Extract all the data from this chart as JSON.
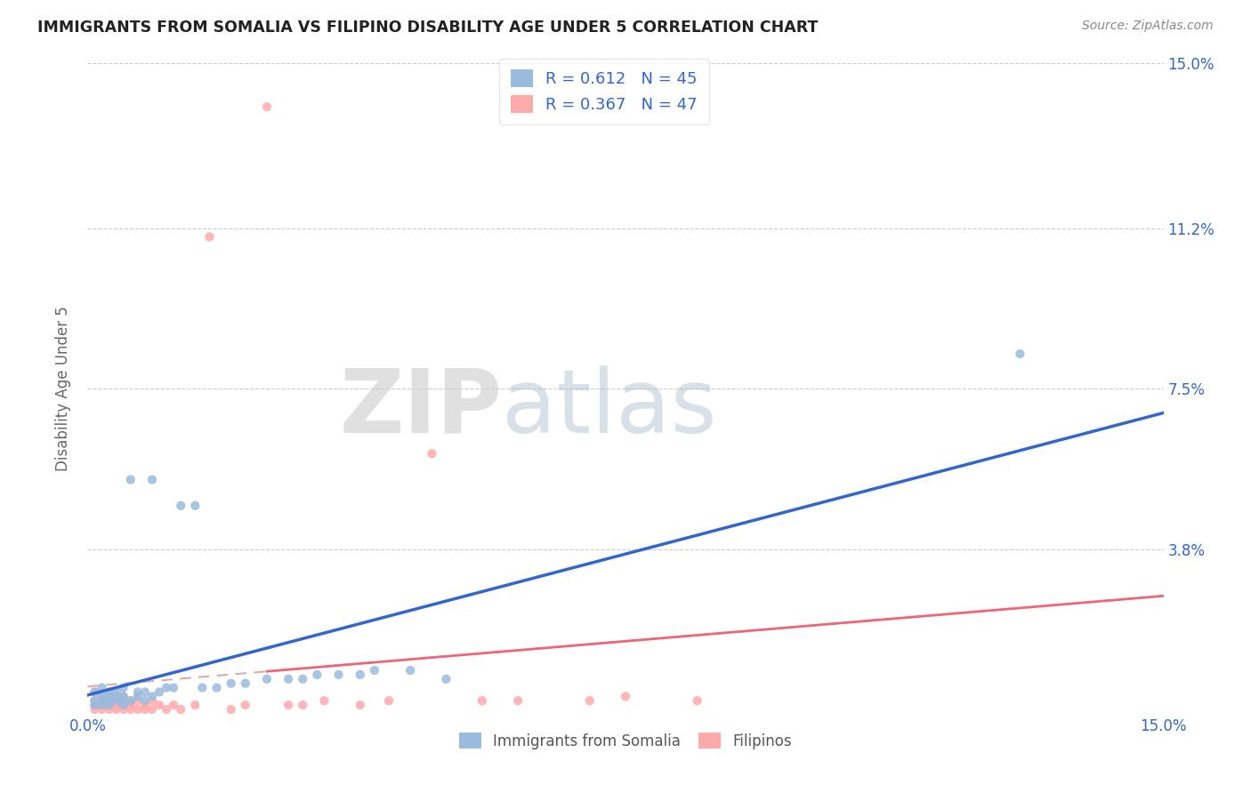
{
  "title": "IMMIGRANTS FROM SOMALIA VS FILIPINO DISABILITY AGE UNDER 5 CORRELATION CHART",
  "source": "Source: ZipAtlas.com",
  "ylabel": "Disability Age Under 5",
  "legend_label_1": "Immigrants from Somalia",
  "legend_label_2": "Filipinos",
  "R1": 0.612,
  "N1": 45,
  "R2": 0.367,
  "N2": 47,
  "color_blue": "#99BBDD",
  "color_pink": "#FFAAAA",
  "color_blue_line": "#3366CC",
  "color_pink_line": "#EE6677",
  "color_pink_dash": "#DDAAAA",
  "xmin": 0.0,
  "xmax": 0.15,
  "ymin": 0.0,
  "ymax": 0.15,
  "yticks": [
    0.0,
    0.038,
    0.075,
    0.112,
    0.15
  ],
  "ytick_labels": [
    "",
    "3.8%",
    "7.5%",
    "11.2%",
    "15.0%"
  ],
  "xtick_labels": [
    "0.0%",
    "15.0%"
  ],
  "grid_color": "#CCCCCC",
  "background_color": "#FFFFFF",
  "title_color": "#222222",
  "source_color": "#888888",
  "ylabel_color": "#666666",
  "tick_color": "#3366CC"
}
